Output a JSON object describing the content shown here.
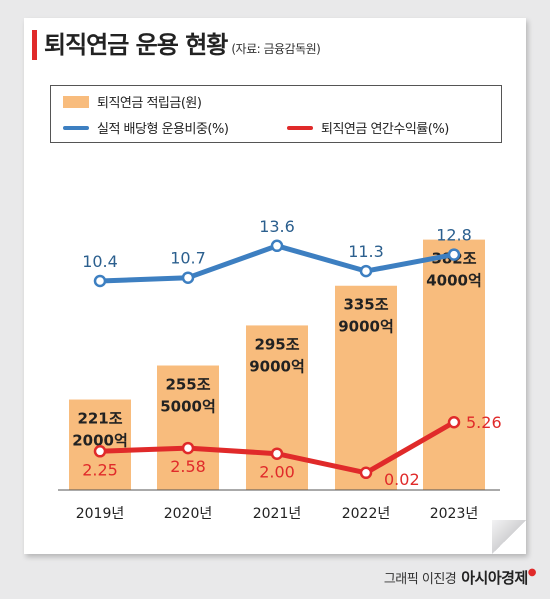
{
  "header": {
    "title": "퇴직연금 운용 현황",
    "source": "(자료: 금융감독원)"
  },
  "legend": {
    "bar": "퇴직연금 적립금(원)",
    "blue": "실적 배당형 운용비중(%)",
    "red": "퇴직연금 연간수익률(%)"
  },
  "credit": {
    "graphic": "그래픽 이진경",
    "brand": "아시아경제"
  },
  "colors": {
    "bar": "#f8bc7d",
    "blue": "#3d7fc1",
    "red": "#e02a2a"
  },
  "chart_data": {
    "type": "bar",
    "categories": [
      "2019년",
      "2020년",
      "2021년",
      "2022년",
      "2023년"
    ],
    "bar_labels": [
      [
        "221조",
        "2000억"
      ],
      [
        "255조",
        "5000억"
      ],
      [
        "295조",
        "9000억"
      ],
      [
        "335조",
        "9000억"
      ],
      [
        "382조",
        "4000억"
      ]
    ],
    "series": [
      {
        "type": "bar",
        "values": [
          221.2,
          255.5,
          295.9,
          335.9,
          382.4
        ]
      },
      {
        "type": "line",
        "values": [
          10.4,
          10.7,
          13.6,
          11.3,
          12.8
        ],
        "labels": [
          "10.4",
          "10.7",
          "13.6",
          "11.3",
          "12.8"
        ]
      },
      {
        "type": "line",
        "values": [
          2.25,
          2.58,
          2.0,
          0.02,
          5.26
        ],
        "labels": [
          "2.25",
          "2.58",
          "2.00",
          "0.02",
          "5.26"
        ]
      }
    ]
  }
}
